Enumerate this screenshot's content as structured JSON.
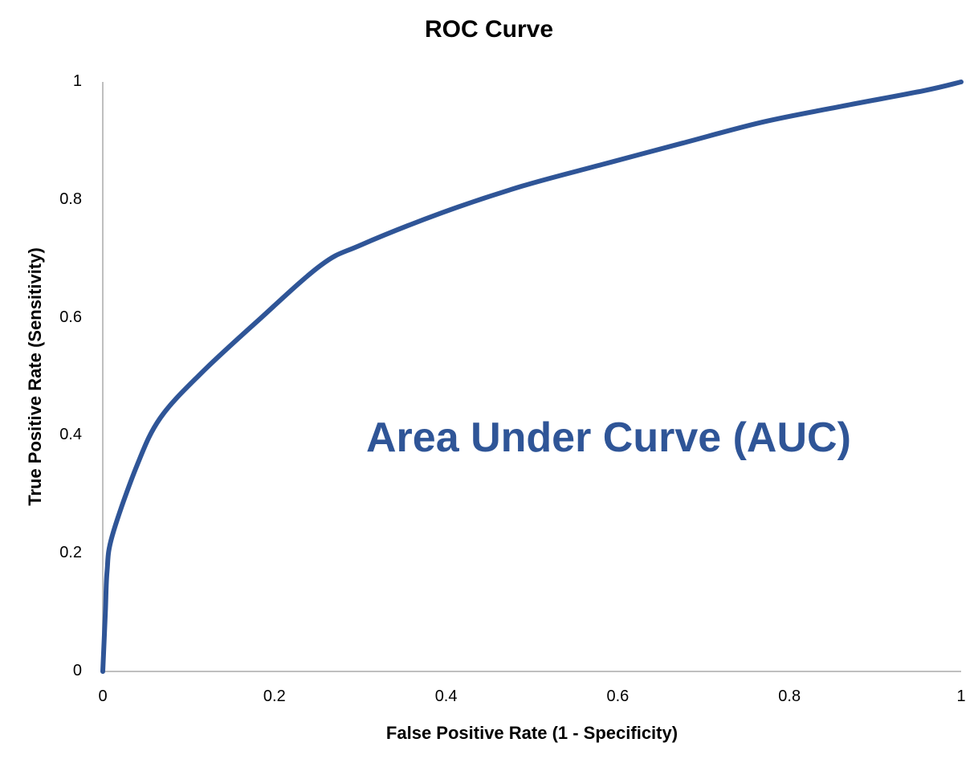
{
  "chart": {
    "title": "ROC Curve",
    "xlabel": "False Positive Rate (1 - Specificity)",
    "ylabel": "True Positive Rate (Sensitivity)",
    "annotation": "Area Under Curve (AUC)",
    "line_color": "#2F5597",
    "axis_color": "#BFBFBF",
    "xticks": [
      "0",
      "0.2",
      "0.4",
      "0.6",
      "0.8",
      "1"
    ],
    "yticks": [
      "0",
      "0.2",
      "0.4",
      "0.6",
      "0.8",
      "1"
    ]
  },
  "chart_data": {
    "type": "line",
    "title": "ROC Curve",
    "xlabel": "False Positive Rate (1 - Specificity)",
    "ylabel": "True Positive Rate (Sensitivity)",
    "xlim": [
      0,
      1
    ],
    "ylim": [
      0,
      1
    ],
    "grid": false,
    "legend": null,
    "annotations": [
      "Area Under Curve (AUC)"
    ],
    "series": [
      {
        "name": "ROC",
        "x": [
          0,
          0.003,
          0.005,
          0.011,
          0.04,
          0.067,
          0.114,
          0.18,
          0.254,
          0.3,
          0.395,
          0.488,
          0.582,
          0.675,
          0.769,
          0.862,
          0.956,
          1.0
        ],
        "y": [
          0,
          0.1,
          0.17,
          0.23,
          0.35,
          0.43,
          0.505,
          0.594,
          0.689,
          0.723,
          0.778,
          0.823,
          0.86,
          0.896,
          0.932,
          0.959,
          0.985,
          1.0
        ]
      }
    ]
  }
}
